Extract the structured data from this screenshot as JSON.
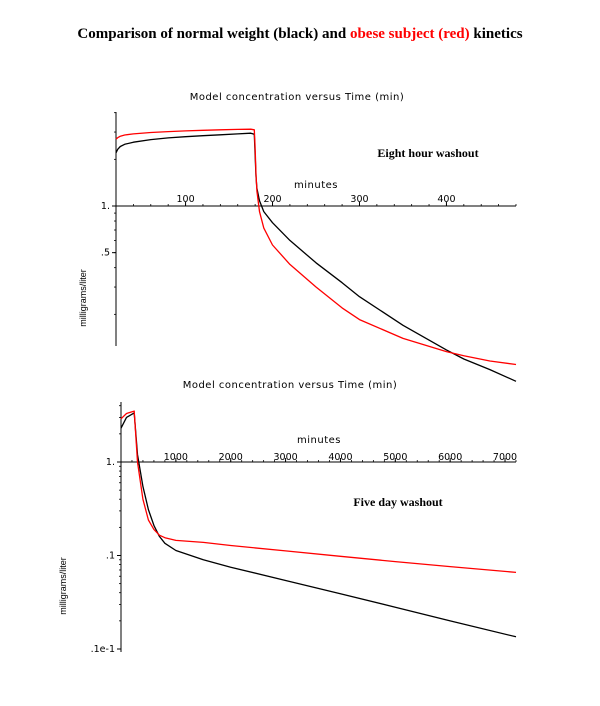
{
  "header": {
    "title_part1": "Comparison of normal weight (black) and ",
    "title_part2": "obese subject (red)",
    "title_part3": " kinetics"
  },
  "colors": {
    "normal": "#000000",
    "obese": "#ff0000"
  },
  "chart_data": [
    {
      "type": "line",
      "title": "Model concentration versus Time (min)",
      "xlabel": "minutes",
      "ylabel": "milligrams/liter",
      "annotation": "Eight hour washout",
      "yscale": "log",
      "xlim": [
        20,
        480
      ],
      "x_ticks": [
        "100",
        "200",
        "300",
        "400"
      ],
      "x_tick_values": [
        100,
        200,
        300,
        400
      ],
      "y_ticks": [
        "1.",
        ".5"
      ],
      "y_tick_values": [
        1,
        0.5
      ],
      "series": [
        {
          "name": "normal weight",
          "color": "#000000",
          "x": [
            20,
            22,
            25,
            30,
            40,
            60,
            80,
            100,
            120,
            140,
            160,
            175,
            179,
            180,
            181,
            182,
            185,
            190,
            200,
            220,
            250,
            280,
            300,
            350,
            400,
            420,
            450,
            480
          ],
          "y": [
            2.2,
            2.32,
            2.42,
            2.5,
            2.58,
            2.68,
            2.75,
            2.8,
            2.84,
            2.88,
            2.92,
            2.95,
            2.9,
            2.15,
            1.55,
            1.3,
            1.08,
            0.92,
            0.78,
            0.6,
            0.43,
            0.32,
            0.26,
            0.17,
            0.118,
            0.103,
            0.088,
            0.074
          ]
        },
        {
          "name": "obese subject",
          "color": "#ff0000",
          "x": [
            20,
            22,
            25,
            30,
            40,
            60,
            80,
            100,
            120,
            140,
            160,
            175,
            179,
            180,
            181,
            182,
            185,
            190,
            200,
            220,
            250,
            280,
            300,
            350,
            400,
            420,
            450,
            480
          ],
          "y": [
            2.7,
            2.76,
            2.82,
            2.87,
            2.92,
            2.98,
            3.02,
            3.05,
            3.08,
            3.1,
            3.12,
            3.13,
            3.1,
            2.4,
            1.6,
            1.25,
            0.92,
            0.72,
            0.56,
            0.42,
            0.3,
            0.22,
            0.185,
            0.14,
            0.115,
            0.108,
            0.1,
            0.095
          ]
        }
      ]
    },
    {
      "type": "line",
      "title": "Model concentration versus Time (min)",
      "xlabel": "minutes",
      "ylabel": "milligrams/liter",
      "annotation": "Five day washout",
      "yscale": "log",
      "xlim": [
        0,
        7200
      ],
      "x_ticks": [
        "1000",
        "2000",
        "3000",
        "4000",
        "5000",
        "6000",
        "7000"
      ],
      "x_tick_values": [
        1000,
        2000,
        3000,
        4000,
        5000,
        6000,
        7000
      ],
      "y_ticks": [
        "1.",
        ".1",
        ".1e-1"
      ],
      "y_tick_values": [
        1,
        0.1,
        0.01
      ],
      "series": [
        {
          "name": "normal weight",
          "color": "#000000",
          "x": [
            0,
            100,
            240,
            300,
            400,
            500,
            600,
            700,
            800,
            1000,
            1500,
            2000,
            3000,
            4000,
            5000,
            6000,
            7200
          ],
          "y": [
            2.3,
            3.0,
            3.35,
            1.2,
            0.55,
            0.31,
            0.21,
            0.16,
            0.135,
            0.113,
            0.09,
            0.075,
            0.054,
            0.039,
            0.028,
            0.02,
            0.0135
          ]
        },
        {
          "name": "obese subject",
          "color": "#ff0000",
          "x": [
            0,
            100,
            240,
            300,
            400,
            500,
            600,
            700,
            800,
            1000,
            1500,
            2000,
            3000,
            4000,
            5000,
            6000,
            7200
          ],
          "y": [
            2.9,
            3.3,
            3.5,
            1.0,
            0.4,
            0.24,
            0.19,
            0.165,
            0.155,
            0.145,
            0.138,
            0.128,
            0.112,
            0.098,
            0.086,
            0.076,
            0.066
          ]
        }
      ]
    }
  ]
}
